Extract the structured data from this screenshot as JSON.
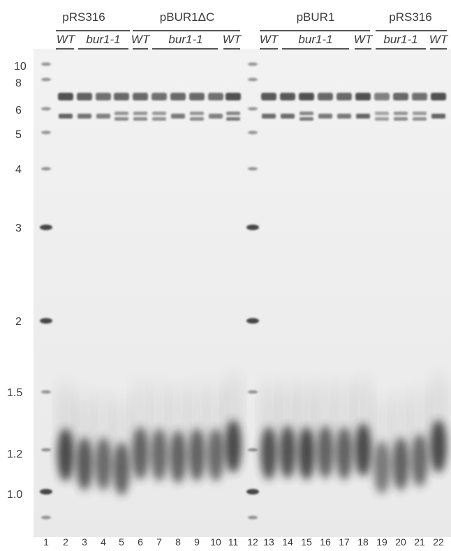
{
  "construct_labels": [
    "pRS316",
    "pBUR1ΔC",
    "pBUR1",
    "pRS316"
  ],
  "genotype_labels": [
    "WT",
    "bur1-1",
    "WT",
    "bur1-1",
    "WT",
    "WT",
    "bur1-1",
    "WT",
    "bur1-1",
    "WT"
  ],
  "size_markers": [
    "10",
    "8",
    "6",
    "5",
    "4",
    "3",
    "2",
    "1.5",
    "1.2",
    "1.0"
  ],
  "lane_numbers": [
    "1",
    "2",
    "3",
    "4",
    "5",
    "6",
    "7",
    "8",
    "9",
    "10",
    "11",
    "12",
    "13",
    "14",
    "15",
    "16",
    "17",
    "18",
    "19",
    "20",
    "21",
    "22"
  ],
  "colors": {
    "background": "#ffffff",
    "band": "#2a2a2a",
    "label": "#3a3a3a"
  }
}
